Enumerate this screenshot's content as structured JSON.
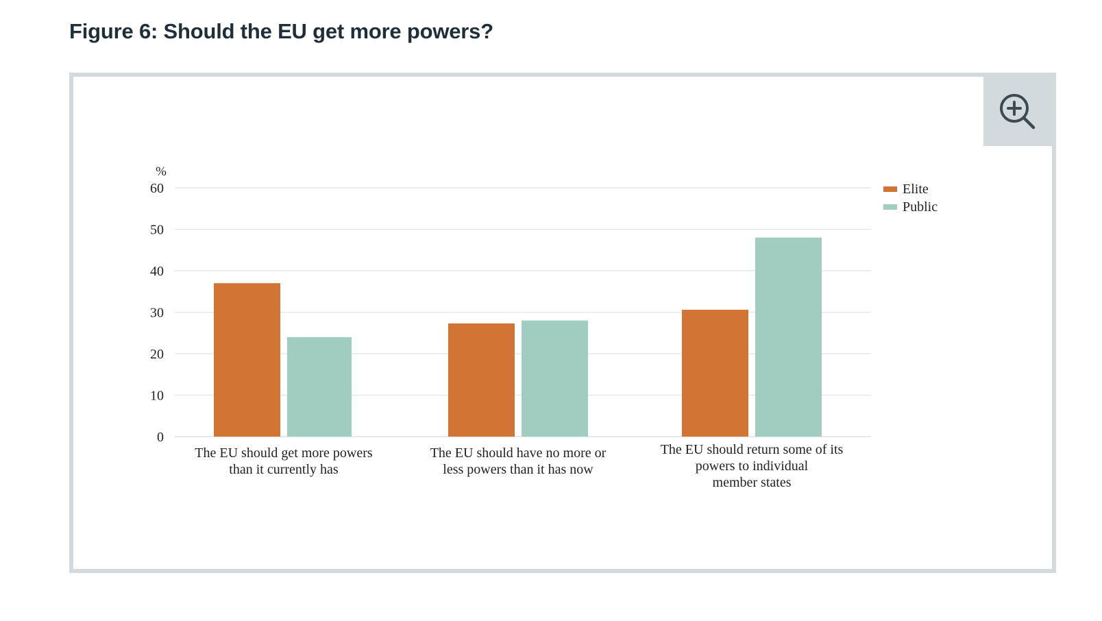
{
  "figure": {
    "title": "Figure 6: Should the EU get more powers?"
  },
  "zoom_button": {
    "icon": "zoom-in-icon"
  },
  "colors": {
    "elite": "#d17434",
    "public": "#a0cdc0",
    "grid": "#e2e2e2",
    "text": "#222222",
    "frame": "#d2dadd"
  },
  "chart_data": {
    "type": "bar",
    "title": "",
    "ylabel": "%",
    "xlabel": "",
    "ylim": [
      0,
      60
    ],
    "yticks": [
      0,
      10,
      20,
      30,
      40,
      50,
      60
    ],
    "grid": true,
    "legend_position": "top-right",
    "categories": [
      [
        "The EU should get more powers",
        "than it currently has"
      ],
      [
        "The EU should have no more or",
        "less powers than it has now"
      ],
      [
        "The EU should return some of its",
        "powers to individual",
        "member states"
      ]
    ],
    "series": [
      {
        "name": "Elite",
        "values": [
          37,
          27.3,
          30.6
        ]
      },
      {
        "name": "Public",
        "values": [
          24,
          28,
          48
        ]
      }
    ]
  }
}
